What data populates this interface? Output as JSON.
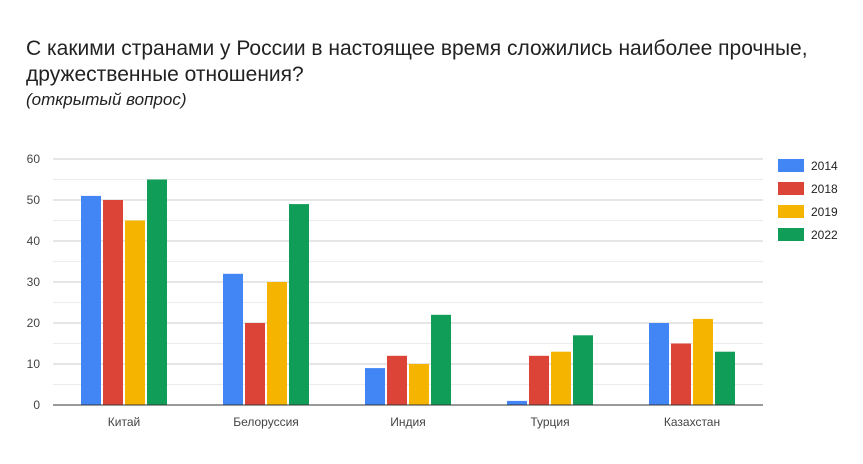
{
  "chart_data": {
    "type": "bar",
    "title": "С какими странами у России в настоящее время сложились наиболее прочные, дружественные отношения?",
    "subtitle": "(открытый вопрос)",
    "categories": [
      "Китай",
      "Белоруссия",
      "Индия",
      "Турция",
      "Казахстан"
    ],
    "series": [
      {
        "name": "2014",
        "color": "#4285f4",
        "values": [
          51,
          32,
          9,
          1,
          20
        ]
      },
      {
        "name": "2018",
        "color": "#db4437",
        "values": [
          50,
          20,
          12,
          12,
          15
        ]
      },
      {
        "name": "2019",
        "color": "#f4b400",
        "values": [
          45,
          30,
          10,
          13,
          21
        ]
      },
      {
        "name": "2022",
        "color": "#0f9d58",
        "values": [
          55,
          49,
          22,
          17,
          13
        ]
      }
    ],
    "ylim": [
      0,
      60
    ],
    "yticks": [
      0,
      10,
      20,
      30,
      40,
      50,
      60
    ],
    "grid": true,
    "legend": "right"
  }
}
